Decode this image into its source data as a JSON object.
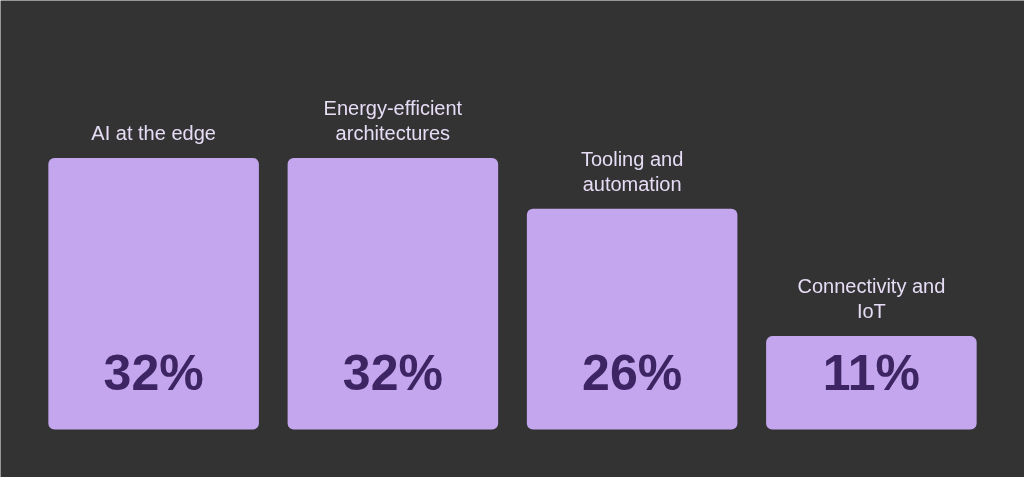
{
  "chart_data": {
    "type": "bar",
    "categories": [
      "AI at the edge",
      "Energy-efficient architectures",
      "Tooling and automation",
      "Connectivity and IoT"
    ],
    "values": [
      32,
      32,
      26,
      11
    ],
    "value_labels": [
      "32%",
      "32%",
      "26%",
      "11%"
    ],
    "color": "#c3a6ee",
    "grid": false
  }
}
